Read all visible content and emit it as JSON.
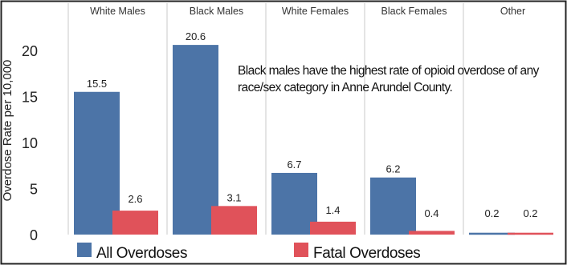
{
  "chart_data": {
    "type": "bar",
    "categories": [
      "White Males",
      "Black Males",
      "White Females",
      "Black Females",
      "Other"
    ],
    "series": [
      {
        "name": "All Overdoses",
        "values": [
          15.5,
          20.6,
          6.7,
          6.2,
          0.2
        ],
        "color": "#4c74a7"
      },
      {
        "name": "Fatal Overdoses",
        "values": [
          2.6,
          3.1,
          1.4,
          0.4,
          0.2
        ],
        "color": "#e0525a"
      }
    ],
    "ylabel": "Overdose Rate per 10,000",
    "yticks": [
      0,
      5,
      10,
      15,
      20
    ],
    "ylim": [
      0,
      23
    ],
    "grid": false,
    "legend_position": "bottom",
    "annotation": "Black males have the highest rate of opioid overdose of any race/sex category in Anne Arundel County."
  }
}
